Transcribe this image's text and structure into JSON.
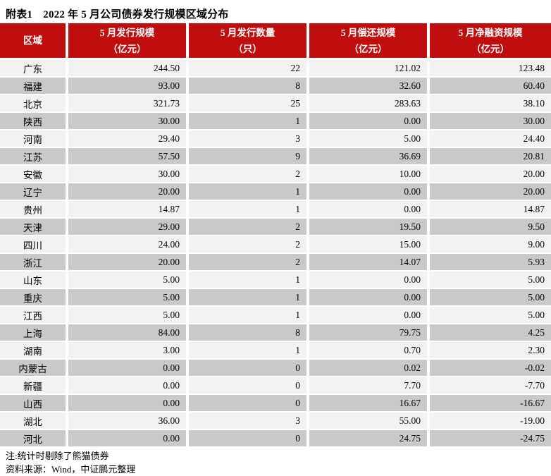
{
  "title": "附表1　2022 年 5 月公司债券发行规模区域分布",
  "table": {
    "headers": [
      {
        "line1": "区域",
        "line2": ""
      },
      {
        "line1": "5 月发行规模",
        "line2": "（亿元）"
      },
      {
        "line1": "5 月发行数量",
        "line2": "（只）"
      },
      {
        "line1": "5 月偿还规模",
        "line2": "（亿元）"
      },
      {
        "line1": "5 月净融资规模",
        "line2": "（亿元）"
      }
    ],
    "rows": [
      {
        "region": "广东",
        "issue_scale": "244.50",
        "issue_count": "22",
        "repay_scale": "121.02",
        "net_financing": "123.48"
      },
      {
        "region": "福建",
        "issue_scale": "93.00",
        "issue_count": "8",
        "repay_scale": "32.60",
        "net_financing": "60.40"
      },
      {
        "region": "北京",
        "issue_scale": "321.73",
        "issue_count": "25",
        "repay_scale": "283.63",
        "net_financing": "38.10"
      },
      {
        "region": "陕西",
        "issue_scale": "30.00",
        "issue_count": "1",
        "repay_scale": "0.00",
        "net_financing": "30.00"
      },
      {
        "region": "河南",
        "issue_scale": "29.40",
        "issue_count": "3",
        "repay_scale": "5.00",
        "net_financing": "24.40"
      },
      {
        "region": "江苏",
        "issue_scale": "57.50",
        "issue_count": "9",
        "repay_scale": "36.69",
        "net_financing": "20.81"
      },
      {
        "region": "安徽",
        "issue_scale": "30.00",
        "issue_count": "2",
        "repay_scale": "10.00",
        "net_financing": "20.00"
      },
      {
        "region": "辽宁",
        "issue_scale": "20.00",
        "issue_count": "1",
        "repay_scale": "0.00",
        "net_financing": "20.00"
      },
      {
        "region": "贵州",
        "issue_scale": "14.87",
        "issue_count": "1",
        "repay_scale": "0.00",
        "net_financing": "14.87"
      },
      {
        "region": "天津",
        "issue_scale": "29.00",
        "issue_count": "2",
        "repay_scale": "19.50",
        "net_financing": "9.50"
      },
      {
        "region": "四川",
        "issue_scale": "24.00",
        "issue_count": "2",
        "repay_scale": "15.00",
        "net_financing": "9.00"
      },
      {
        "region": "浙江",
        "issue_scale": "20.00",
        "issue_count": "2",
        "repay_scale": "14.07",
        "net_financing": "5.93"
      },
      {
        "region": "山东",
        "issue_scale": "5.00",
        "issue_count": "1",
        "repay_scale": "0.00",
        "net_financing": "5.00"
      },
      {
        "region": "重庆",
        "issue_scale": "5.00",
        "issue_count": "1",
        "repay_scale": "0.00",
        "net_financing": "5.00"
      },
      {
        "region": "江西",
        "issue_scale": "5.00",
        "issue_count": "1",
        "repay_scale": "0.00",
        "net_financing": "5.00"
      },
      {
        "region": "上海",
        "issue_scale": "84.00",
        "issue_count": "8",
        "repay_scale": "79.75",
        "net_financing": "4.25"
      },
      {
        "region": "湖南",
        "issue_scale": "3.00",
        "issue_count": "1",
        "repay_scale": "0.70",
        "net_financing": "2.30"
      },
      {
        "region": "内蒙古",
        "issue_scale": "0.00",
        "issue_count": "0",
        "repay_scale": "0.02",
        "net_financing": "-0.02"
      },
      {
        "region": "新疆",
        "issue_scale": "0.00",
        "issue_count": "0",
        "repay_scale": "7.70",
        "net_financing": "-7.70"
      },
      {
        "region": "山西",
        "issue_scale": "0.00",
        "issue_count": "0",
        "repay_scale": "16.67",
        "net_financing": "-16.67"
      },
      {
        "region": "湖北",
        "issue_scale": "36.00",
        "issue_count": "3",
        "repay_scale": "55.00",
        "net_financing": "-19.00"
      },
      {
        "region": "河北",
        "issue_scale": "0.00",
        "issue_count": "0",
        "repay_scale": "24.75",
        "net_financing": "-24.75"
      }
    ]
  },
  "notes": {
    "note_line": "注:统计时剔除了熊猫债券",
    "source_line": "资料来源：Wind，中证鹏元整理"
  },
  "colors": {
    "header_bg": "#C00E0E",
    "header_text": "#FFFFFF",
    "row_light": "#F2F2F2",
    "row_dark": "#C9C9C9",
    "text": "#000000"
  }
}
